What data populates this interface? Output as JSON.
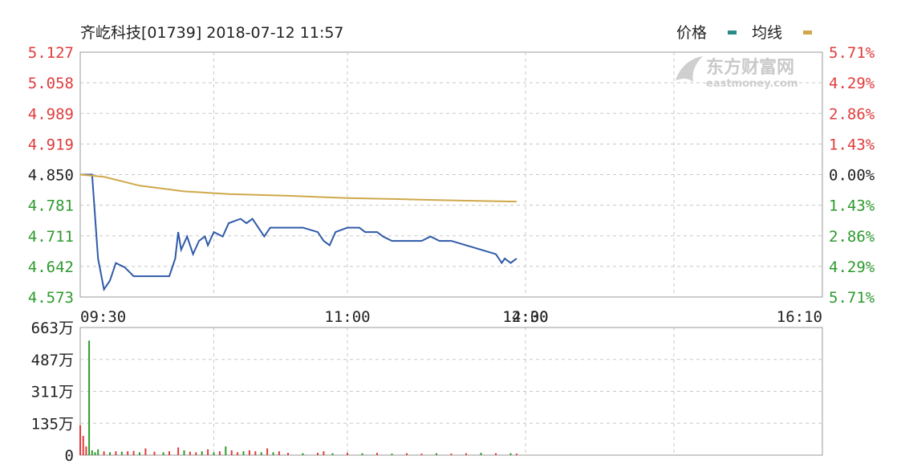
{
  "header": {
    "title": "齐屹科技[01739] 2018-07-12 11:57",
    "legend_price": "价格",
    "legend_avg": "均线"
  },
  "watermark": {
    "brand": "东方财富网",
    "domain": "eastmoney.com"
  },
  "colors": {
    "up": "#e03c3c",
    "down": "#2e9a2e",
    "flat": "#222222",
    "price_line": "#2f5aa8",
    "avg_line": "#cfa84a",
    "legend_price": "#2a8a8a",
    "legend_avg": "#cfa84a",
    "grid": "#c8c8c8"
  },
  "chart_data": [
    {
      "type": "line",
      "title": "齐屹科技[01739] 2018-07-12 11:57",
      "prev_close": 4.85,
      "ylim": [
        4.573,
        5.127
      ],
      "y_ticks_left": [
        "5.127",
        "5.058",
        "4.989",
        "4.919",
        "4.850",
        "4.781",
        "4.711",
        "4.642",
        "4.573"
      ],
      "y_ticks_right": [
        "5.71%",
        "4.29%",
        "2.86%",
        "1.43%",
        "0.00%",
        "1.43%",
        "2.86%",
        "4.29%",
        "5.71%"
      ],
      "x_ticks": [
        "09:30",
        "11:00",
        "12:00",
        "14:30",
        "16:10"
      ],
      "grid": true,
      "legend_position": "top-right",
      "series": [
        {
          "name": "价格",
          "points": [
            [
              "09:30",
              4.85
            ],
            [
              "09:34",
              4.85
            ],
            [
              "09:36",
              4.66
            ],
            [
              "09:38",
              4.59
            ],
            [
              "09:40",
              4.61
            ],
            [
              "09:42",
              4.65
            ],
            [
              "09:45",
              4.64
            ],
            [
              "09:48",
              4.62
            ],
            [
              "09:55",
              4.62
            ],
            [
              "10:00",
              4.62
            ],
            [
              "10:02",
              4.66
            ],
            [
              "10:03",
              4.72
            ],
            [
              "10:04",
              4.68
            ],
            [
              "10:06",
              4.71
            ],
            [
              "10:08",
              4.67
            ],
            [
              "10:10",
              4.7
            ],
            [
              "10:12",
              4.71
            ],
            [
              "10:13",
              4.69
            ],
            [
              "10:15",
              4.72
            ],
            [
              "10:18",
              4.71
            ],
            [
              "10:20",
              4.74
            ],
            [
              "10:24",
              4.75
            ],
            [
              "10:26",
              4.74
            ],
            [
              "10:28",
              4.75
            ],
            [
              "10:30",
              4.73
            ],
            [
              "10:32",
              4.71
            ],
            [
              "10:34",
              4.73
            ],
            [
              "10:40",
              4.73
            ],
            [
              "10:45",
              4.73
            ],
            [
              "10:50",
              4.72
            ],
            [
              "10:52",
              4.7
            ],
            [
              "10:54",
              4.69
            ],
            [
              "10:56",
              4.72
            ],
            [
              "11:00",
              4.73
            ],
            [
              "11:04",
              4.73
            ],
            [
              "11:06",
              4.72
            ],
            [
              "11:10",
              4.72
            ],
            [
              "11:12",
              4.71
            ],
            [
              "11:15",
              4.7
            ],
            [
              "11:20",
              4.7
            ],
            [
              "11:25",
              4.7
            ],
            [
              "11:28",
              4.71
            ],
            [
              "11:31",
              4.7
            ],
            [
              "11:35",
              4.7
            ],
            [
              "11:40",
              4.69
            ],
            [
              "11:45",
              4.68
            ],
            [
              "11:50",
              4.67
            ],
            [
              "11:52",
              4.65
            ],
            [
              "11:53",
              4.66
            ],
            [
              "11:55",
              4.65
            ],
            [
              "11:57",
              4.66
            ]
          ]
        },
        {
          "name": "均线",
          "points": [
            [
              "09:30",
              4.85
            ],
            [
              "09:38",
              4.845
            ],
            [
              "09:50",
              4.825
            ],
            [
              "10:05",
              4.812
            ],
            [
              "10:20",
              4.806
            ],
            [
              "10:40",
              4.802
            ],
            [
              "11:00",
              4.797
            ],
            [
              "11:20",
              4.794
            ],
            [
              "11:40",
              4.791
            ],
            [
              "11:57",
              4.789
            ]
          ]
        }
      ]
    },
    {
      "type": "bar",
      "ylim": [
        0,
        663
      ],
      "y_ticks": [
        "663万",
        "487万",
        "311万",
        "135万",
        "0"
      ],
      "unit": "万",
      "volumes": [
        [
          "09:30",
          155,
          "up"
        ],
        [
          "09:31",
          100,
          "up"
        ],
        [
          "09:32",
          45,
          "up"
        ],
        [
          "09:33",
          595,
          "down"
        ],
        [
          "09:34",
          25,
          "down"
        ],
        [
          "09:35",
          15,
          "down"
        ],
        [
          "09:36",
          30,
          "down"
        ],
        [
          "09:38",
          20,
          "up"
        ],
        [
          "09:40",
          15,
          "down"
        ],
        [
          "09:42",
          20,
          "up"
        ],
        [
          "09:44",
          18,
          "down"
        ],
        [
          "09:46",
          20,
          "up"
        ],
        [
          "09:48",
          22,
          "up"
        ],
        [
          "09:50",
          15,
          "down"
        ],
        [
          "09:52",
          35,
          "up"
        ],
        [
          "09:55",
          18,
          "up"
        ],
        [
          "09:58",
          15,
          "down"
        ],
        [
          "10:00",
          20,
          "up"
        ],
        [
          "10:03",
          40,
          "up"
        ],
        [
          "10:05",
          25,
          "down"
        ],
        [
          "10:07",
          18,
          "up"
        ],
        [
          "10:09",
          15,
          "up"
        ],
        [
          "10:11",
          20,
          "down"
        ],
        [
          "10:13",
          30,
          "up"
        ],
        [
          "10:15",
          15,
          "down"
        ],
        [
          "10:17",
          20,
          "up"
        ],
        [
          "10:19",
          45,
          "down"
        ],
        [
          "10:21",
          25,
          "up"
        ],
        [
          "10:23",
          15,
          "up"
        ],
        [
          "10:25",
          20,
          "down"
        ],
        [
          "10:27",
          25,
          "up"
        ],
        [
          "10:29",
          20,
          "up"
        ],
        [
          "10:31",
          15,
          "down"
        ],
        [
          "10:33",
          35,
          "up"
        ],
        [
          "10:35",
          15,
          "down"
        ],
        [
          "10:37",
          20,
          "up"
        ],
        [
          "10:40",
          12,
          "up"
        ],
        [
          "10:45",
          10,
          "down"
        ],
        [
          "10:50",
          12,
          "up"
        ],
        [
          "10:52",
          20,
          "up"
        ],
        [
          "10:55",
          10,
          "down"
        ],
        [
          "11:00",
          12,
          "up"
        ],
        [
          "11:05",
          10,
          "down"
        ],
        [
          "11:10",
          12,
          "up"
        ],
        [
          "11:15",
          8,
          "down"
        ],
        [
          "11:20",
          10,
          "up"
        ],
        [
          "11:25",
          8,
          "up"
        ],
        [
          "11:30",
          10,
          "down"
        ],
        [
          "11:35",
          8,
          "up"
        ],
        [
          "11:40",
          10,
          "up"
        ],
        [
          "11:45",
          12,
          "down"
        ],
        [
          "11:50",
          10,
          "up"
        ],
        [
          "11:55",
          10,
          "down"
        ],
        [
          "11:57",
          8,
          "up"
        ]
      ]
    }
  ]
}
